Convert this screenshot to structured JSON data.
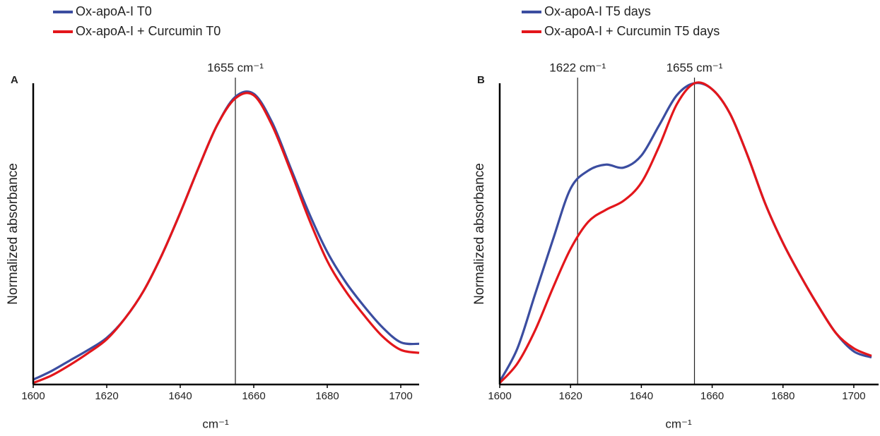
{
  "chart_data": [
    {
      "type": "line",
      "panel_label": "A",
      "x_label": "cm⁻¹",
      "y_label": "Normalized absorbance",
      "x": [
        1600,
        1605,
        1610,
        1615,
        1620,
        1625,
        1630,
        1635,
        1640,
        1645,
        1650,
        1655,
        1660,
        1665,
        1670,
        1675,
        1680,
        1685,
        1690,
        1695,
        1700,
        1705
      ],
      "series": [
        {
          "name": "Ox-apoA-I T0",
          "color": "#3b4da0",
          "values": [
            0.016,
            0.045,
            0.08,
            0.115,
            0.155,
            0.22,
            0.31,
            0.43,
            0.57,
            0.72,
            0.86,
            0.955,
            0.965,
            0.87,
            0.72,
            0.57,
            0.44,
            0.34,
            0.26,
            0.19,
            0.14,
            0.135
          ]
        },
        {
          "name": "Ox-apoA-I + Curcumin T0",
          "color": "#e3161b",
          "values": [
            0.005,
            0.03,
            0.065,
            0.105,
            0.15,
            0.22,
            0.31,
            0.43,
            0.57,
            0.72,
            0.86,
            0.95,
            0.96,
            0.86,
            0.71,
            0.55,
            0.41,
            0.31,
            0.23,
            0.16,
            0.115,
            0.105
          ]
        }
      ],
      "annotations": [
        {
          "x": 1655,
          "label": "1655 cm⁻¹"
        }
      ],
      "xlim": [
        1600,
        1705
      ],
      "xticks": [
        1600,
        1620,
        1640,
        1660,
        1680,
        1700
      ],
      "ylim": [
        0,
        1
      ]
    },
    {
      "type": "line",
      "panel_label": "B",
      "x_label": "cm⁻¹",
      "y_label": "Normalized absorbance",
      "x": [
        1600,
        1605,
        1610,
        1615,
        1620,
        1625,
        1630,
        1635,
        1640,
        1645,
        1650,
        1655,
        1660,
        1665,
        1670,
        1675,
        1680,
        1685,
        1690,
        1695,
        1700,
        1705
      ],
      "series": [
        {
          "name": "Ox-apoA-I T5 days",
          "color": "#3b4da0",
          "values": [
            0.01,
            0.12,
            0.3,
            0.48,
            0.65,
            0.71,
            0.73,
            0.72,
            0.76,
            0.86,
            0.96,
            1.0,
            0.98,
            0.9,
            0.76,
            0.6,
            0.47,
            0.36,
            0.26,
            0.17,
            0.11,
            0.09
          ]
        },
        {
          "name": "Ox-apoA-I + Curcumin T5 days",
          "color": "#e3161b",
          "values": [
            0.005,
            0.07,
            0.18,
            0.32,
            0.45,
            0.54,
            0.58,
            0.61,
            0.67,
            0.79,
            0.93,
            1.0,
            0.98,
            0.9,
            0.76,
            0.6,
            0.47,
            0.36,
            0.26,
            0.17,
            0.12,
            0.095
          ]
        }
      ],
      "annotations": [
        {
          "x": 1622,
          "label": "1622 cm⁻¹"
        },
        {
          "x": 1655,
          "label": "1655 cm⁻¹"
        }
      ],
      "xlim": [
        1600,
        1707
      ],
      "xticks": [
        1600,
        1620,
        1640,
        1660,
        1680,
        1700
      ],
      "ylim": [
        0,
        1
      ]
    }
  ]
}
